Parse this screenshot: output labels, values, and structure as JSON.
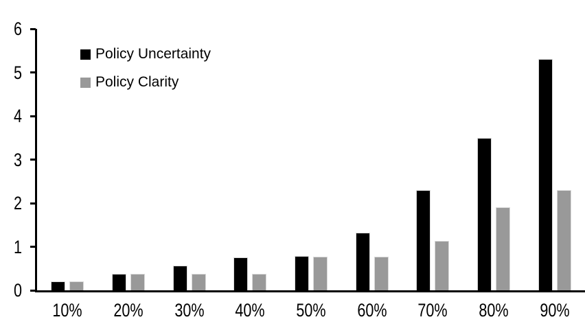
{
  "chart_data": {
    "type": "bar",
    "title": "",
    "xlabel": "",
    "ylabel": "",
    "categories": [
      "10%",
      "20%",
      "30%",
      "40%",
      "50%",
      "60%",
      "70%",
      "80%",
      "90%"
    ],
    "series": [
      {
        "name": "Policy Uncertainty",
        "color": "#000000",
        "values": [
          0.2,
          0.38,
          0.57,
          0.76,
          0.78,
          1.33,
          2.3,
          3.5,
          5.3
        ]
      },
      {
        "name": "Policy Clarity",
        "color": "#999999",
        "values": [
          0.2,
          0.38,
          0.38,
          0.38,
          0.77,
          0.77,
          1.13,
          1.9,
          2.3
        ]
      }
    ],
    "ylim": [
      0,
      6
    ],
    "yticks": [
      0,
      1,
      2,
      3,
      4,
      5,
      6
    ],
    "grid": false,
    "legend_position": "top-left-inside",
    "axis_color": "#000000",
    "background_color": "#ffffff",
    "bar_border_color": "#d9d9d9"
  }
}
